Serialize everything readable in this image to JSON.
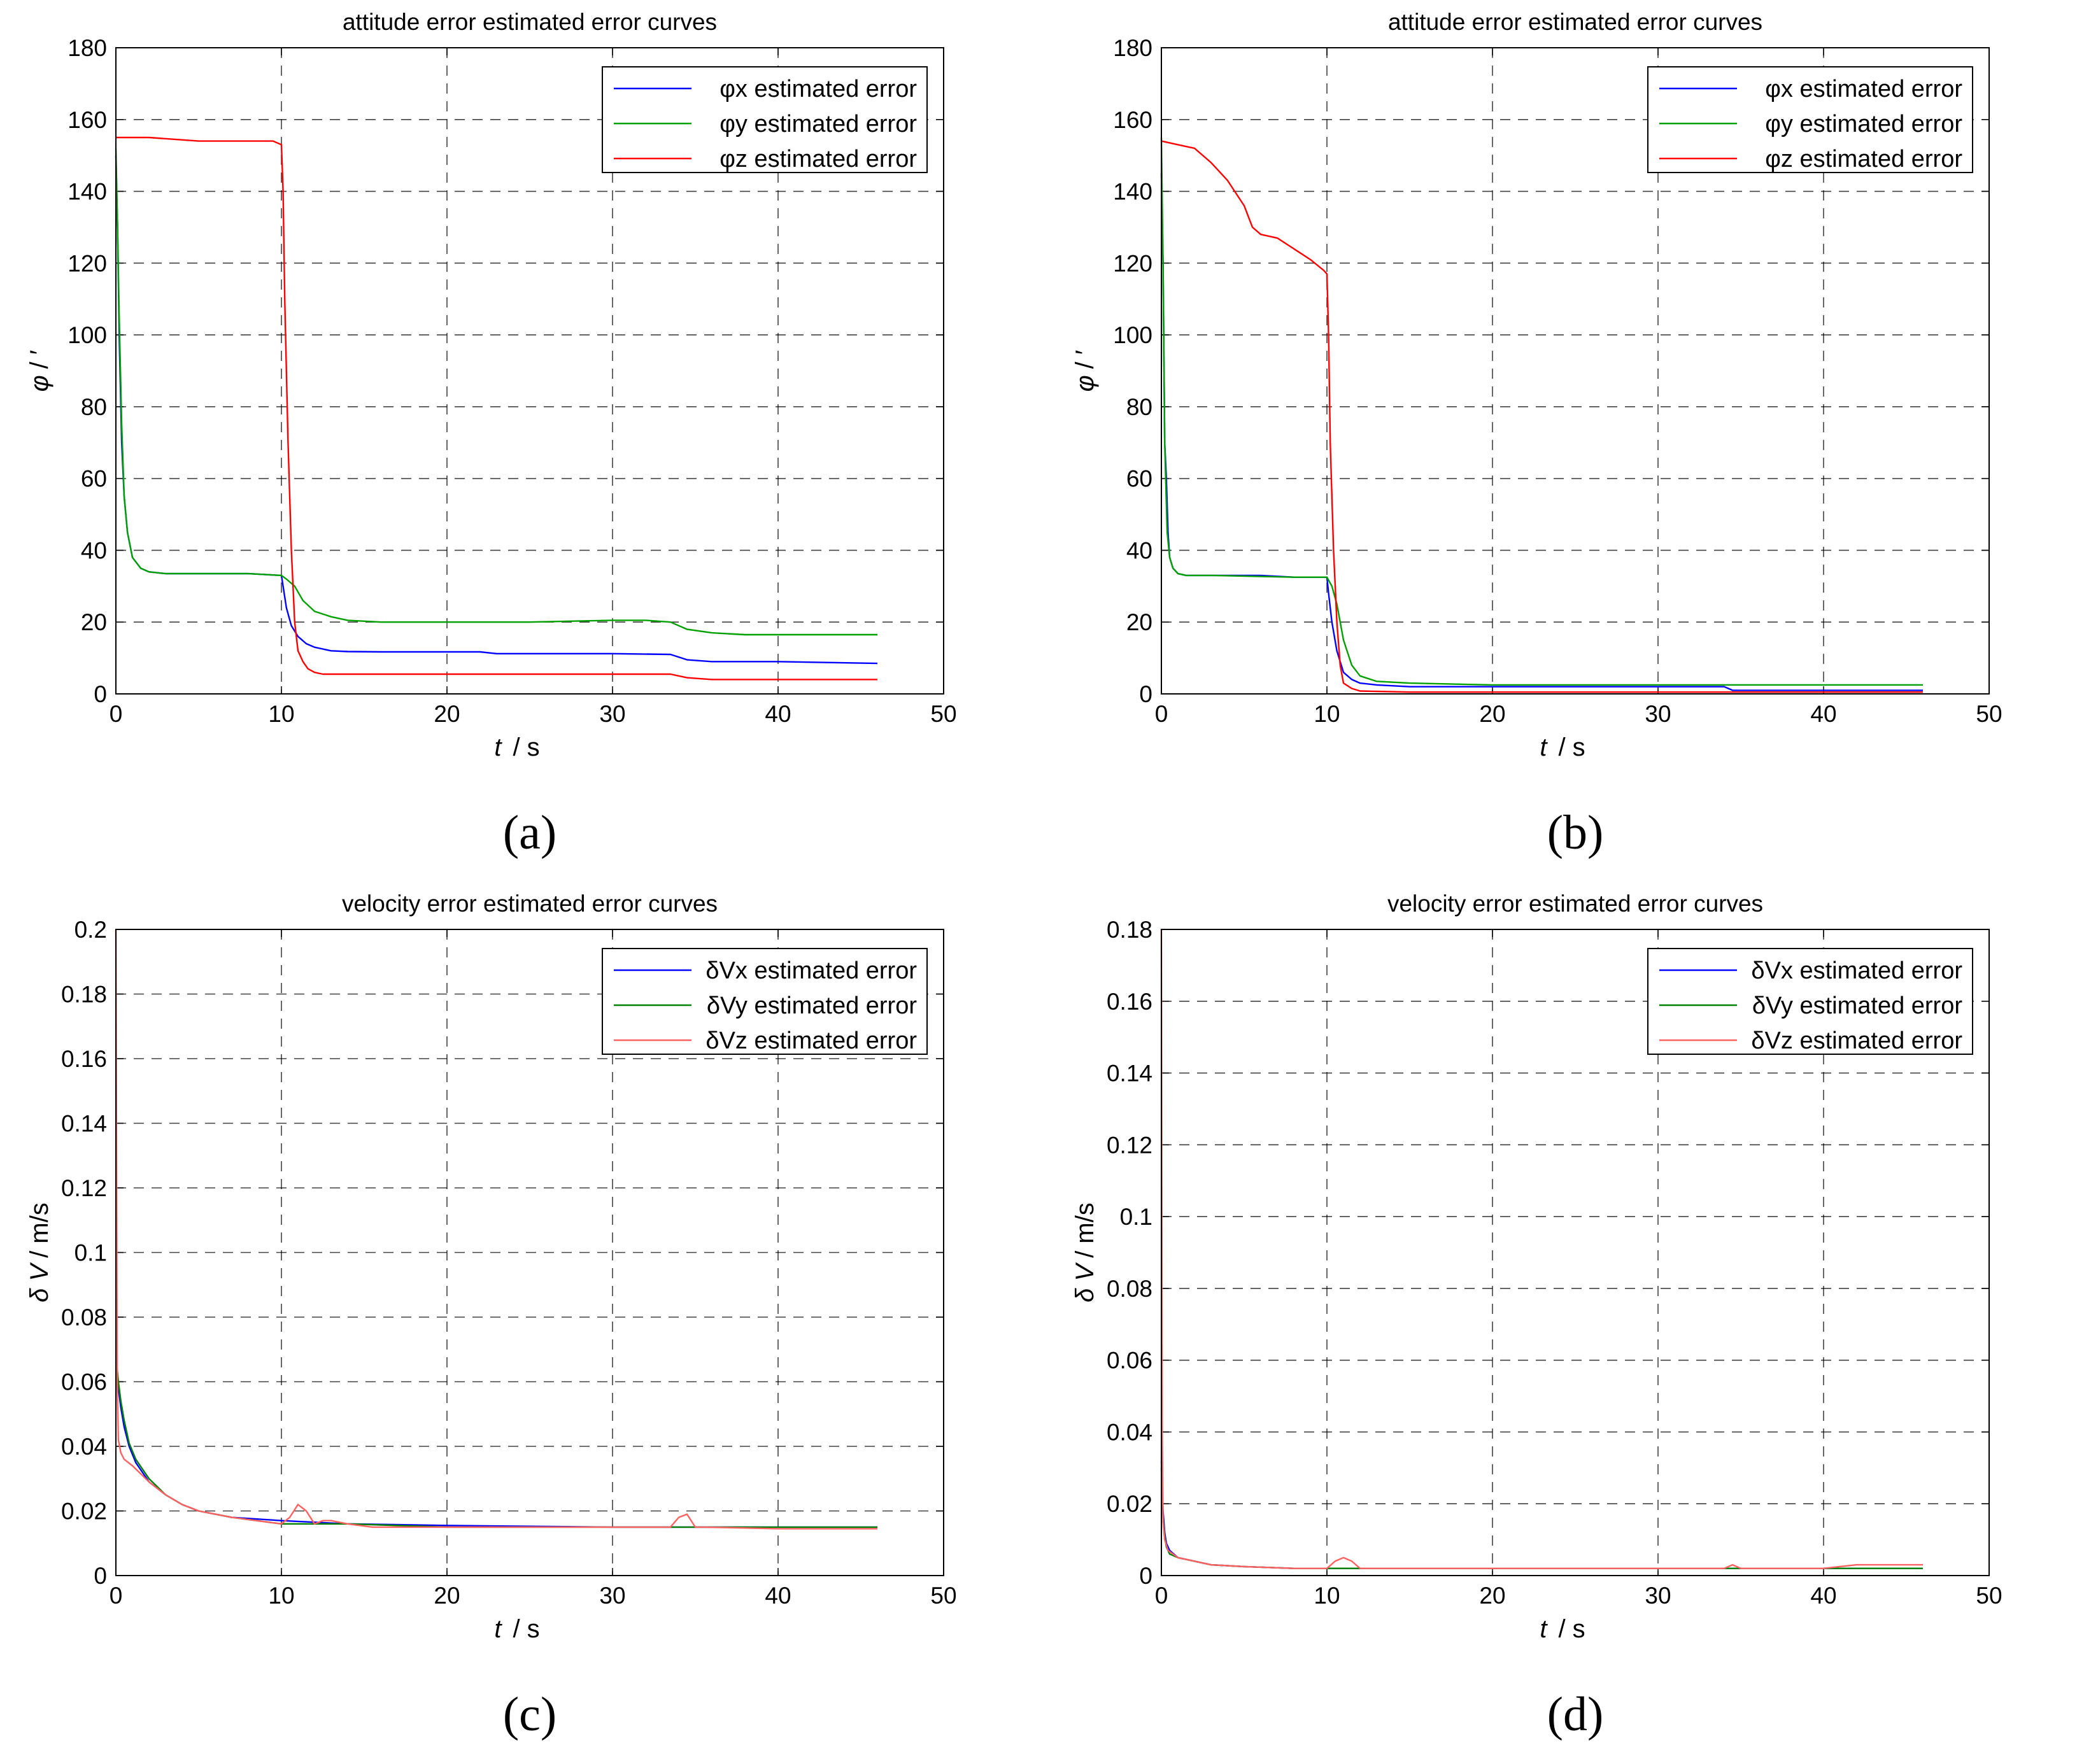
{
  "chart_data": [
    {
      "panel_label": "(a)",
      "type": "line",
      "title": "attitude error estimated error curves",
      "xlabel_italic": "t",
      "xlabel_unit": "/ s",
      "ylabel_italic": "φ",
      "ylabel_unit": "/ ′",
      "xlim": [
        0,
        50
      ],
      "ylim": [
        0,
        180
      ],
      "xticks": [
        0,
        10,
        20,
        30,
        40,
        50
      ],
      "yticks": [
        0,
        20,
        40,
        60,
        80,
        100,
        120,
        140,
        160,
        180
      ],
      "grid": true,
      "legend_position": "top-right",
      "series": [
        {
          "name": "φx estimated error",
          "color": "#0000ff",
          "x": [
            0,
            0.1,
            0.2,
            0.35,
            0.5,
            0.7,
            1,
            1.5,
            2,
            3,
            5,
            8,
            10,
            10.1,
            10.3,
            10.6,
            11,
            11.5,
            12,
            13,
            14,
            16,
            22,
            23,
            30,
            33.5,
            34.5,
            36,
            40,
            46
          ],
          "y": [
            150,
            130,
            100,
            70,
            55,
            45,
            38,
            35,
            34,
            33.5,
            33.5,
            33.5,
            33,
            30,
            24,
            19,
            16,
            14,
            13,
            12,
            11.8,
            11.7,
            11.7,
            11.2,
            11.2,
            11,
            9.5,
            9,
            9,
            8.5
          ]
        },
        {
          "name": "φy estimated error",
          "color": "#00a000",
          "x": [
            0,
            0.1,
            0.2,
            0.35,
            0.5,
            0.7,
            1,
            1.5,
            2,
            3,
            5,
            8,
            10,
            10.3,
            10.8,
            11.3,
            12,
            13,
            14,
            16,
            25,
            30,
            32,
            33.5,
            34.5,
            36,
            38,
            40,
            46
          ],
          "y": [
            152,
            130,
            105,
            75,
            55,
            45,
            38,
            35,
            34,
            33.5,
            33.5,
            33.5,
            33,
            32,
            30,
            26,
            23,
            21.5,
            20.5,
            20,
            20,
            20.5,
            20.5,
            20,
            18,
            17,
            16.5,
            16.5,
            16.5
          ]
        },
        {
          "name": "φz estimated error",
          "color": "#ff0000",
          "x": [
            0,
            2,
            5,
            8,
            9.5,
            10,
            10.1,
            10.2,
            10.4,
            10.6,
            10.8,
            11,
            11.3,
            11.6,
            12,
            12.5,
            14,
            20,
            30,
            33.5,
            34.5,
            36,
            40,
            46
          ],
          "y": [
            155,
            155,
            154,
            154,
            154,
            153,
            140,
            110,
            70,
            40,
            20,
            12,
            9,
            7,
            6,
            5.5,
            5.5,
            5.5,
            5.5,
            5.5,
            4.5,
            4,
            4,
            4
          ]
        }
      ]
    },
    {
      "panel_label": "(b)",
      "type": "line",
      "title": "attitude error estimated error curves",
      "xlabel_italic": "t",
      "xlabel_unit": "/ s",
      "ylabel_italic": "φ",
      "ylabel_unit": "/ ′",
      "xlim": [
        0,
        50
      ],
      "ylim": [
        0,
        180
      ],
      "xticks": [
        0,
        10,
        20,
        30,
        40,
        50
      ],
      "yticks": [
        0,
        20,
        40,
        60,
        80,
        100,
        120,
        140,
        160,
        180
      ],
      "grid": true,
      "legend_position": "top-right",
      "series": [
        {
          "name": "φx estimated error",
          "color": "#0000ff",
          "x": [
            0,
            0.1,
            0.2,
            0.3,
            0.4,
            0.5,
            0.7,
            1,
            1.5,
            3,
            6,
            8,
            10,
            10.1,
            10.3,
            10.6,
            11,
            11.5,
            12,
            13,
            15,
            20,
            34,
            34.5,
            46
          ],
          "y": [
            145,
            120,
            70,
            60,
            45,
            38,
            35,
            33.5,
            33,
            33,
            33,
            32.5,
            32.5,
            28,
            20,
            12,
            6,
            4,
            3,
            2.5,
            2,
            2,
            2,
            1,
            1
          ]
        },
        {
          "name": "φy estimated error",
          "color": "#00a000",
          "x": [
            0,
            0.1,
            0.2,
            0.35,
            0.5,
            0.7,
            1,
            1.5,
            3,
            8,
            10,
            10.3,
            10.6,
            11,
            11.5,
            12,
            13,
            15,
            20,
            46
          ],
          "y": [
            155,
            120,
            70,
            45,
            38,
            35,
            33.5,
            33,
            33,
            32.5,
            32.5,
            30,
            25,
            15,
            8,
            5,
            3.5,
            3,
            2.5,
            2.5
          ]
        },
        {
          "name": "φz estimated error",
          "color": "#ff0000",
          "x": [
            0,
            1,
            2,
            3,
            4,
            5,
            5.5,
            6,
            7,
            8,
            9,
            9.8,
            10,
            10.1,
            10.2,
            10.4,
            10.6,
            10.8,
            11,
            11.5,
            12,
            15,
            46
          ],
          "y": [
            154,
            153,
            152,
            148,
            143,
            136,
            130,
            128,
            127,
            124,
            121,
            118,
            117,
            100,
            70,
            40,
            20,
            8,
            3,
            1.5,
            0.8,
            0.5,
            0.5
          ]
        }
      ]
    },
    {
      "panel_label": "(c)",
      "type": "line",
      "title": "velocity error estimated error curves",
      "xlabel_italic": "t",
      "xlabel_unit": "/ s",
      "ylabel_italic": "δ V",
      "ylabel_unit": "/ m/s",
      "xlim": [
        0,
        50
      ],
      "ylim": [
        0,
        0.2
      ],
      "xticks": [
        0,
        10,
        20,
        30,
        40,
        50
      ],
      "yticks": [
        0,
        0.02,
        0.04,
        0.06,
        0.08,
        0.1,
        0.12,
        0.14,
        0.16,
        0.18,
        0.2
      ],
      "grid": true,
      "legend_position": "top-right",
      "series": [
        {
          "name": "δVx estimated error",
          "color": "#0000ff",
          "x": [
            0,
            0.15,
            0.3,
            0.5,
            0.8,
            1.2,
            2,
            3,
            4,
            5,
            7,
            10,
            14,
            20,
            30,
            40,
            46
          ],
          "y": [
            0.066,
            0.058,
            0.052,
            0.046,
            0.04,
            0.035,
            0.029,
            0.025,
            0.022,
            0.02,
            0.018,
            0.017,
            0.016,
            0.0155,
            0.015,
            0.015,
            0.015
          ]
        },
        {
          "name": "δVy estimated error",
          "color": "#008000",
          "x": [
            0,
            0.15,
            0.3,
            0.5,
            0.8,
            1.2,
            2,
            3,
            4,
            5,
            7,
            10,
            14,
            20,
            30,
            40,
            46
          ],
          "y": [
            0.068,
            0.06,
            0.054,
            0.048,
            0.041,
            0.036,
            0.03,
            0.025,
            0.022,
            0.02,
            0.018,
            0.016,
            0.016,
            0.015,
            0.015,
            0.015,
            0.015
          ]
        },
        {
          "name": "δVz estimated error",
          "color": "#ff6060",
          "x": [
            0,
            0.08,
            0.15,
            0.3,
            0.5,
            1,
            2,
            3,
            4,
            5,
            7,
            10,
            10.5,
            11,
            11.5,
            12,
            12.5,
            13,
            14,
            15.5,
            20,
            33.5,
            34,
            34.5,
            35,
            35.5,
            40,
            46
          ],
          "y": [
            0.2,
            0.06,
            0.042,
            0.038,
            0.036,
            0.034,
            0.029,
            0.025,
            0.022,
            0.02,
            0.018,
            0.016,
            0.018,
            0.022,
            0.02,
            0.016,
            0.017,
            0.017,
            0.016,
            0.015,
            0.015,
            0.015,
            0.018,
            0.019,
            0.015,
            0.015,
            0.0145,
            0.0145
          ]
        }
      ]
    },
    {
      "panel_label": "(d)",
      "type": "line",
      "title": "velocity error estimated error curves",
      "xlabel_italic": "t",
      "xlabel_unit": "/ s",
      "ylabel_italic": "δ V",
      "ylabel_unit": "/ m/s",
      "xlim": [
        0,
        50
      ],
      "ylim": [
        0,
        0.18
      ],
      "xticks": [
        0,
        10,
        20,
        30,
        40,
        50
      ],
      "yticks": [
        0,
        0.02,
        0.04,
        0.06,
        0.08,
        0.1,
        0.12,
        0.14,
        0.16,
        0.18
      ],
      "grid": true,
      "legend_position": "top-right",
      "series": [
        {
          "name": "δVx estimated error",
          "color": "#0000ff",
          "x": [
            0,
            0.1,
            0.2,
            0.3,
            0.5,
            1,
            2,
            3,
            5,
            8,
            10,
            20,
            30,
            40,
            46
          ],
          "y": [
            0.032,
            0.018,
            0.012,
            0.009,
            0.007,
            0.005,
            0.004,
            0.003,
            0.0025,
            0.002,
            0.002,
            0.002,
            0.002,
            0.002,
            0.002
          ]
        },
        {
          "name": "δVy estimated error",
          "color": "#008000",
          "x": [
            0,
            0.1,
            0.2,
            0.3,
            0.5,
            1,
            2,
            3,
            5,
            8,
            10,
            20,
            30,
            40,
            46
          ],
          "y": [
            0.03,
            0.016,
            0.011,
            0.008,
            0.006,
            0.005,
            0.004,
            0.003,
            0.0025,
            0.002,
            0.002,
            0.002,
            0.002,
            0.002,
            0.002
          ]
        },
        {
          "name": "δVz estimated error",
          "color": "#ff6060",
          "x": [
            0,
            0.05,
            0.1,
            0.2,
            0.4,
            1,
            2,
            3,
            5,
            8,
            10,
            10.5,
            11,
            11.5,
            12,
            13,
            20,
            34,
            34.5,
            35,
            40,
            42,
            46
          ],
          "y": [
            0.18,
            0.04,
            0.015,
            0.01,
            0.007,
            0.005,
            0.004,
            0.003,
            0.0025,
            0.002,
            0.002,
            0.004,
            0.005,
            0.004,
            0.002,
            0.002,
            0.002,
            0.002,
            0.003,
            0.002,
            0.002,
            0.003,
            0.003
          ]
        }
      ]
    }
  ]
}
